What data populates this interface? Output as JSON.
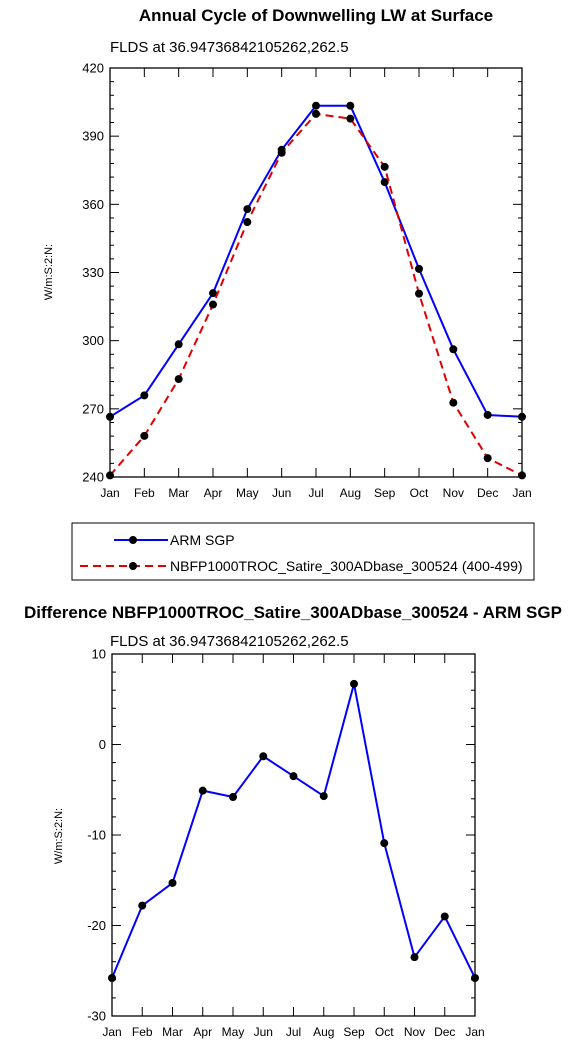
{
  "chart_data": [
    {
      "type": "line",
      "title": "Annual Cycle of Downwelling LW at Surface",
      "subtitle": "FLDS at 36.94736842105262,262.5",
      "ylabel": "W/m:S:2:N:",
      "xlabel": "",
      "categories": [
        "Jan",
        "Feb",
        "Mar",
        "Apr",
        "May",
        "Jun",
        "Jul",
        "Aug",
        "Sep",
        "Oct",
        "Nov",
        "Dec",
        "Jan"
      ],
      "ylim": [
        240,
        420
      ],
      "yticks": [
        "240",
        "270",
        "300",
        "330",
        "360",
        "390",
        "420"
      ],
      "series": [
        {
          "name": "ARM SGP",
          "color": "#0000ff",
          "dash": "solid",
          "values": [
            266.5,
            275.9,
            298.4,
            320.9,
            357.9,
            384.0,
            403.4,
            403.4,
            369.8,
            331.6,
            296.2,
            267.3,
            266.5
          ]
        },
        {
          "name": "NBFP1000TROC_Satire_300ADbase_300524 (400-499)",
          "color": "#e00000",
          "dash": "dashed",
          "values": [
            240.7,
            258.1,
            283.1,
            315.9,
            352.2,
            382.7,
            399.8,
            397.7,
            376.5,
            320.7,
            272.7,
            248.3,
            240.7
          ]
        }
      ],
      "legend": "below"
    },
    {
      "type": "line",
      "title": "Difference NBFP1000TROC_Satire_300ADbase_300524 - ARM SGP",
      "subtitle": "FLDS at 36.94736842105262,262.5",
      "ylabel": "W/m:S:2:N:",
      "xlabel": "",
      "categories": [
        "Jan",
        "Feb",
        "Mar",
        "Apr",
        "May",
        "Jun",
        "Jul",
        "Aug",
        "Sep",
        "Oct",
        "Nov",
        "Dec",
        "Jan"
      ],
      "ylim": [
        -30,
        10
      ],
      "yticks": [
        "-30",
        "-20",
        "-10",
        "0",
        "10"
      ],
      "series": [
        {
          "color": "#0000ff",
          "dash": "solid",
          "values": [
            -25.8,
            -17.8,
            -15.3,
            -5.1,
            -5.8,
            -1.3,
            -3.5,
            -5.7,
            6.7,
            -10.9,
            -23.5,
            -19.0,
            -25.8
          ]
        }
      ]
    }
  ]
}
